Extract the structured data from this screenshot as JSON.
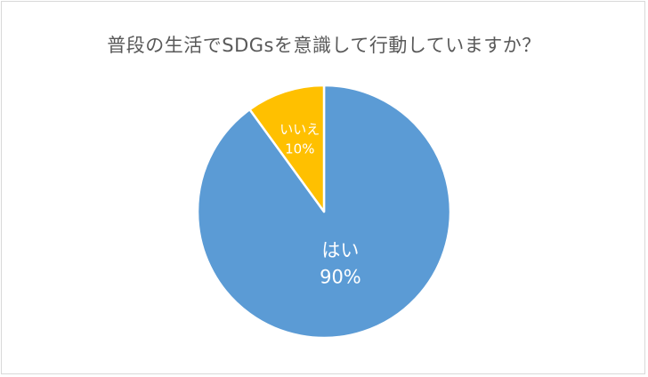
{
  "chart_data": {
    "type": "pie",
    "title": "普段の生活でSDGsを意識して行動していますか？",
    "slices": [
      {
        "label": "はい",
        "value": 90,
        "display": "90%",
        "color": "#5b9bd5",
        "text_color": "#ffffff"
      },
      {
        "label": "いいえ",
        "value": 10,
        "display": "10%",
        "color": "#ffc000",
        "text_color": "#ffffff"
      }
    ],
    "start_direction": "12 o'clock",
    "direction": "clockwise",
    "slice_border_color": "#ffffff",
    "legend": "none",
    "data_labels": "inside"
  }
}
